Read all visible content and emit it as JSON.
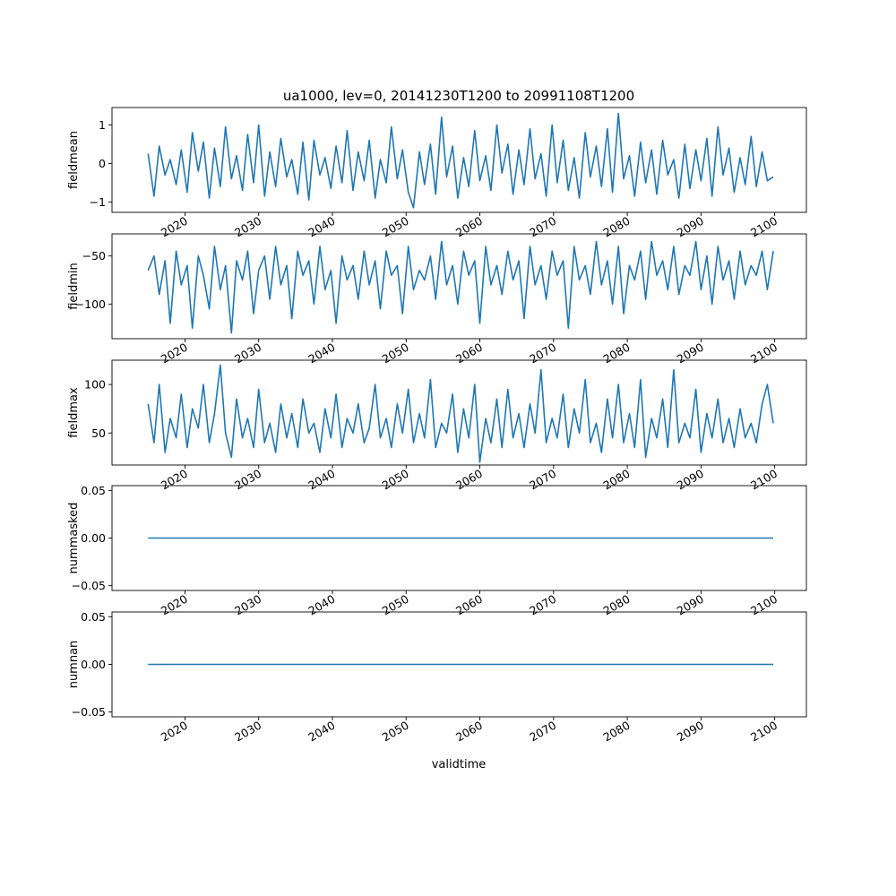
{
  "figure": {
    "title": "ua1000, lev=0, 20141230T1200 to 20991108T1200",
    "xlabel": "validtime",
    "line_color": "#1f77b4"
  },
  "chart_data": [
    {
      "type": "line",
      "ylabel": "fieldmean",
      "xlim": [
        2010.1,
        2104.3
      ],
      "ylim": [
        -1.27,
        1.45
      ],
      "yticks": [
        -1,
        0,
        1
      ],
      "ytick_labels": [
        "−1",
        "0",
        "1"
      ],
      "xticks": [
        2020,
        2030,
        2040,
        2050,
        2060,
        2070,
        2080,
        2090,
        2100
      ],
      "xtick_labels": [
        "2020",
        "2030",
        "2040",
        "2050",
        "2060",
        "2070",
        "2080",
        "2090",
        "2100"
      ],
      "grid": false,
      "series": [
        {
          "x": [
            2015.0,
            2015.8,
            2016.5,
            2017.3,
            2018.0,
            2018.8,
            2019.5,
            2020.3,
            2021.0,
            2021.8,
            2022.5,
            2023.3,
            2024.0,
            2024.8,
            2025.5,
            2026.3,
            2027.0,
            2027.8,
            2028.5,
            2029.3,
            2030.0,
            2030.8,
            2031.5,
            2032.3,
            2033.0,
            2033.8,
            2034.5,
            2035.3,
            2036.0,
            2036.8,
            2037.5,
            2038.3,
            2039.0,
            2039.8,
            2040.5,
            2041.3,
            2042.0,
            2042.8,
            2043.5,
            2044.3,
            2045.0,
            2045.8,
            2046.5,
            2047.3,
            2048.0,
            2048.8,
            2049.5,
            2050.3,
            2051.0,
            2051.8,
            2052.5,
            2053.3,
            2054.0,
            2054.8,
            2055.5,
            2056.3,
            2057.0,
            2057.8,
            2058.5,
            2059.3,
            2060.0,
            2060.8,
            2061.5,
            2062.3,
            2063.0,
            2063.8,
            2064.5,
            2065.3,
            2066.0,
            2066.8,
            2067.5,
            2068.3,
            2069.0,
            2069.8,
            2070.5,
            2071.3,
            2072.0,
            2072.8,
            2073.5,
            2074.3,
            2075.0,
            2075.8,
            2076.5,
            2077.3,
            2078.0,
            2078.8,
            2079.5,
            2080.3,
            2081.0,
            2081.8,
            2082.5,
            2083.3,
            2084.0,
            2084.8,
            2085.5,
            2086.3,
            2087.0,
            2087.8,
            2088.5,
            2089.3,
            2090.0,
            2090.8,
            2091.5,
            2092.3,
            2093.0,
            2093.8,
            2094.5,
            2095.3,
            2096.0,
            2096.8,
            2097.5,
            2098.3,
            2099.0,
            2099.8
          ],
          "values": [
            0.25,
            -0.85,
            0.45,
            -0.3,
            0.1,
            -0.55,
            0.35,
            -0.75,
            0.8,
            -0.2,
            0.55,
            -0.9,
            0.4,
            -0.6,
            0.95,
            -0.4,
            0.2,
            -0.7,
            0.75,
            -0.5,
            1.0,
            -0.85,
            0.3,
            -0.6,
            0.65,
            -0.35,
            0.1,
            -0.8,
            0.55,
            -0.95,
            0.6,
            -0.3,
            0.15,
            -0.65,
            0.45,
            -0.5,
            0.85,
            -0.7,
            0.3,
            -0.45,
            0.6,
            -0.9,
            0.1,
            -0.5,
            0.95,
            -0.4,
            0.35,
            -0.75,
            -1.15,
            0.3,
            -0.55,
            0.5,
            -0.8,
            1.2,
            -0.35,
            0.45,
            -0.9,
            0.15,
            -0.6,
            0.85,
            -0.45,
            0.2,
            -0.7,
            1.0,
            -0.25,
            0.5,
            -0.8,
            0.35,
            -0.55,
            0.9,
            -0.4,
            0.25,
            -0.85,
            1.0,
            -0.5,
            0.6,
            -0.7,
            0.15,
            -0.9,
            0.8,
            -0.35,
            0.45,
            -0.6,
            0.9,
            -0.75,
            1.3,
            -0.4,
            0.2,
            -0.85,
            0.55,
            -0.5,
            0.35,
            -0.8,
            0.6,
            -0.3,
            0.1,
            -0.9,
            0.5,
            -0.65,
            0.35,
            -0.45,
            0.65,
            -0.85,
            0.95,
            -0.3,
            0.4,
            -0.75,
            0.15,
            -0.55,
            0.7,
            -0.6,
            0.3,
            -0.45,
            -0.35
          ]
        }
      ]
    },
    {
      "type": "line",
      "ylabel": "fieldmin",
      "xlim": [
        2010.1,
        2104.3
      ],
      "ylim": [
        -136,
        -27
      ],
      "yticks": [
        -100,
        -50
      ],
      "ytick_labels": [
        "−100",
        "−50"
      ],
      "xticks": [
        2020,
        2030,
        2040,
        2050,
        2060,
        2070,
        2080,
        2090,
        2100
      ],
      "xtick_labels": [
        "2020",
        "2030",
        "2040",
        "2050",
        "2060",
        "2070",
        "2080",
        "2090",
        "2100"
      ],
      "grid": false,
      "series": [
        {
          "x": [
            2015.0,
            2015.8,
            2016.5,
            2017.3,
            2018.0,
            2018.8,
            2019.5,
            2020.3,
            2021.0,
            2021.8,
            2022.5,
            2023.3,
            2024.0,
            2024.8,
            2025.5,
            2026.3,
            2027.0,
            2027.8,
            2028.5,
            2029.3,
            2030.0,
            2030.8,
            2031.5,
            2032.3,
            2033.0,
            2033.8,
            2034.5,
            2035.3,
            2036.0,
            2036.8,
            2037.5,
            2038.3,
            2039.0,
            2039.8,
            2040.5,
            2041.3,
            2042.0,
            2042.8,
            2043.5,
            2044.3,
            2045.0,
            2045.8,
            2046.5,
            2047.3,
            2048.0,
            2048.8,
            2049.5,
            2050.3,
            2051.0,
            2051.8,
            2052.5,
            2053.3,
            2054.0,
            2054.8,
            2055.5,
            2056.3,
            2057.0,
            2057.8,
            2058.5,
            2059.3,
            2060.0,
            2060.8,
            2061.5,
            2062.3,
            2063.0,
            2063.8,
            2064.5,
            2065.3,
            2066.0,
            2066.8,
            2067.5,
            2068.3,
            2069.0,
            2069.8,
            2070.5,
            2071.3,
            2072.0,
            2072.8,
            2073.5,
            2074.3,
            2075.0,
            2075.8,
            2076.5,
            2077.3,
            2078.0,
            2078.8,
            2079.5,
            2080.3,
            2081.0,
            2081.8,
            2082.5,
            2083.3,
            2084.0,
            2084.8,
            2085.5,
            2086.3,
            2087.0,
            2087.8,
            2088.5,
            2089.3,
            2090.0,
            2090.8,
            2091.5,
            2092.3,
            2093.0,
            2093.8,
            2094.5,
            2095.3,
            2096.0,
            2096.8,
            2097.5,
            2098.3,
            2099.0,
            2099.8
          ],
          "values": [
            -65,
            -50,
            -90,
            -55,
            -120,
            -45,
            -80,
            -60,
            -125,
            -50,
            -70,
            -105,
            -40,
            -85,
            -60,
            -130,
            -55,
            -75,
            -45,
            -110,
            -65,
            -50,
            -95,
            -40,
            -80,
            -60,
            -115,
            -45,
            -70,
            -55,
            -100,
            -40,
            -85,
            -65,
            -120,
            -50,
            -75,
            -60,
            -95,
            -45,
            -80,
            -55,
            -105,
            -45,
            -70,
            -60,
            -110,
            -40,
            -85,
            -65,
            -75,
            -50,
            -95,
            -35,
            -80,
            -60,
            -100,
            -45,
            -70,
            -55,
            -120,
            -40,
            -80,
            -60,
            -90,
            -45,
            -75,
            -55,
            -115,
            -40,
            -80,
            -60,
            -95,
            -45,
            -70,
            -55,
            -125,
            -40,
            -75,
            -60,
            -90,
            -35,
            -80,
            -55,
            -100,
            -40,
            -110,
            -60,
            -75,
            -45,
            -95,
            -35,
            -70,
            -55,
            -85,
            -40,
            -90,
            -60,
            -70,
            -35,
            -85,
            -50,
            -100,
            -40,
            -75,
            -55,
            -95,
            -45,
            -80,
            -60,
            -70,
            -45,
            -85,
            -45
          ]
        }
      ]
    },
    {
      "type": "line",
      "ylabel": "fieldmax",
      "xlim": [
        2010.1,
        2104.3
      ],
      "ylim": [
        17,
        125
      ],
      "yticks": [
        50,
        100
      ],
      "ytick_labels": [
        "50",
        "100"
      ],
      "xticks": [
        2020,
        2030,
        2040,
        2050,
        2060,
        2070,
        2080,
        2090,
        2100
      ],
      "xtick_labels": [
        "2020",
        "2030",
        "2040",
        "2050",
        "2060",
        "2070",
        "2080",
        "2090",
        "2100"
      ],
      "grid": false,
      "series": [
        {
          "x": [
            2015.0,
            2015.8,
            2016.5,
            2017.3,
            2018.0,
            2018.8,
            2019.5,
            2020.3,
            2021.0,
            2021.8,
            2022.5,
            2023.3,
            2024.0,
            2024.8,
            2025.5,
            2026.3,
            2027.0,
            2027.8,
            2028.5,
            2029.3,
            2030.0,
            2030.8,
            2031.5,
            2032.3,
            2033.0,
            2033.8,
            2034.5,
            2035.3,
            2036.0,
            2036.8,
            2037.5,
            2038.3,
            2039.0,
            2039.8,
            2040.5,
            2041.3,
            2042.0,
            2042.8,
            2043.5,
            2044.3,
            2045.0,
            2045.8,
            2046.5,
            2047.3,
            2048.0,
            2048.8,
            2049.5,
            2050.3,
            2051.0,
            2051.8,
            2052.5,
            2053.3,
            2054.0,
            2054.8,
            2055.5,
            2056.3,
            2057.0,
            2057.8,
            2058.5,
            2059.3,
            2060.0,
            2060.8,
            2061.5,
            2062.3,
            2063.0,
            2063.8,
            2064.5,
            2065.3,
            2066.0,
            2066.8,
            2067.5,
            2068.3,
            2069.0,
            2069.8,
            2070.5,
            2071.3,
            2072.0,
            2072.8,
            2073.5,
            2074.3,
            2075.0,
            2075.8,
            2076.5,
            2077.3,
            2078.0,
            2078.8,
            2079.5,
            2080.3,
            2081.0,
            2081.8,
            2082.5,
            2083.3,
            2084.0,
            2084.8,
            2085.5,
            2086.3,
            2087.0,
            2087.8,
            2088.5,
            2089.3,
            2090.0,
            2090.8,
            2091.5,
            2092.3,
            2093.0,
            2093.8,
            2094.5,
            2095.3,
            2096.0,
            2096.8,
            2097.5,
            2098.3,
            2099.0,
            2099.8
          ],
          "values": [
            80,
            40,
            100,
            30,
            65,
            45,
            90,
            35,
            75,
            55,
            100,
            40,
            70,
            120,
            50,
            25,
            85,
            45,
            65,
            35,
            95,
            40,
            60,
            30,
            80,
            45,
            70,
            35,
            85,
            50,
            60,
            30,
            75,
            45,
            90,
            35,
            65,
            50,
            80,
            40,
            55,
            100,
            45,
            65,
            35,
            80,
            50,
            95,
            40,
            70,
            45,
            105,
            35,
            60,
            50,
            90,
            30,
            75,
            45,
            100,
            20,
            65,
            40,
            85,
            35,
            95,
            45,
            70,
            35,
            80,
            50,
            115,
            40,
            65,
            45,
            90,
            35,
            75,
            50,
            105,
            40,
            60,
            30,
            85,
            45,
            100,
            40,
            70,
            35,
            105,
            25,
            65,
            45,
            85,
            35,
            115,
            40,
            60,
            45,
            95,
            30,
            70,
            45,
            85,
            40,
            65,
            35,
            75,
            45,
            60,
            40,
            80,
            100,
            60
          ]
        }
      ]
    },
    {
      "type": "line",
      "ylabel": "nummasked",
      "xlim": [
        2010.1,
        2104.3
      ],
      "ylim": [
        -0.055,
        0.055
      ],
      "yticks": [
        -0.05,
        0,
        0.05
      ],
      "ytick_labels": [
        "−0.05",
        "0.00",
        "0.05"
      ],
      "xticks": [
        2020,
        2030,
        2040,
        2050,
        2060,
        2070,
        2080,
        2090,
        2100
      ],
      "xtick_labels": [
        "2020",
        "2030",
        "2040",
        "2050",
        "2060",
        "2070",
        "2080",
        "2090",
        "2100"
      ],
      "grid": false,
      "series": [
        {
          "x": [
            2015.0,
            2099.8
          ],
          "values": [
            0,
            0
          ]
        }
      ]
    },
    {
      "type": "line",
      "ylabel": "numnan",
      "xlim": [
        2010.1,
        2104.3
      ],
      "ylim": [
        -0.055,
        0.055
      ],
      "yticks": [
        -0.05,
        0,
        0.05
      ],
      "ytick_labels": [
        "−0.05",
        "0.00",
        "0.05"
      ],
      "xticks": [
        2020,
        2030,
        2040,
        2050,
        2060,
        2070,
        2080,
        2090,
        2100
      ],
      "xtick_labels": [
        "2020",
        "2030",
        "2040",
        "2050",
        "2060",
        "2070",
        "2080",
        "2090",
        "2100"
      ],
      "grid": false,
      "series": [
        {
          "x": [
            2015.0,
            2099.8
          ],
          "values": [
            0,
            0
          ]
        }
      ]
    }
  ]
}
